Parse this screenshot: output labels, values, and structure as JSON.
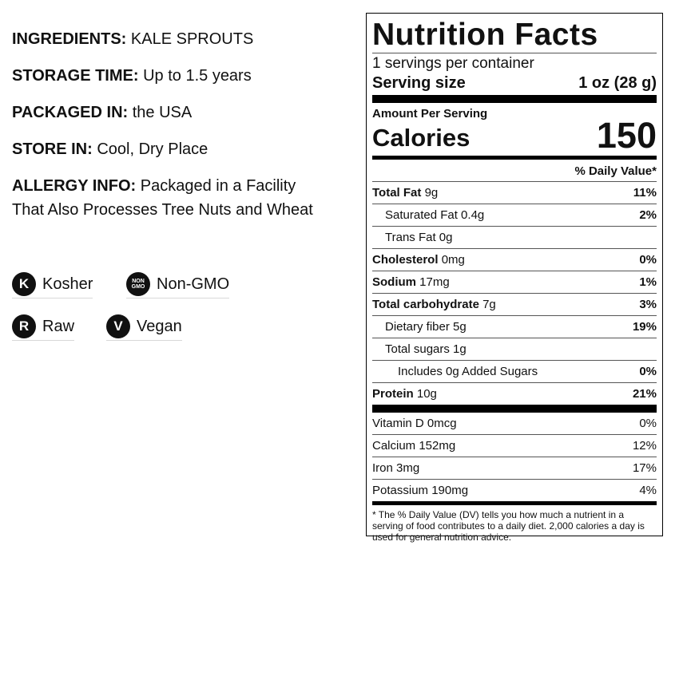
{
  "info": {
    "ingredients": {
      "label": "INGREDIENTS:",
      "value": "KALE SPROUTS"
    },
    "storage_time": {
      "label": "STORAGE TIME:",
      "value": "Up to 1.5 years"
    },
    "packaged_in": {
      "label": "PACKAGED IN:",
      "value": "the USA"
    },
    "store_in": {
      "label": "STORE IN:",
      "value": "Cool, Dry Place"
    },
    "allergy": {
      "label": "ALLERGY INFO:",
      "value": "Packaged in a Facility That Also Processes Tree Nuts and Wheat"
    }
  },
  "badges": [
    {
      "icon_text": "K",
      "label": "Kosher",
      "icon": "kosher-icon"
    },
    {
      "icon_text": "NON GMO",
      "label": "Non-GMO",
      "icon": "non-gmo-icon"
    },
    {
      "icon_text": "R",
      "label": "Raw",
      "icon": "raw-icon"
    },
    {
      "icon_text": "V",
      "label": "Vegan",
      "icon": "vegan-icon"
    }
  ],
  "nutrition": {
    "title": "Nutrition Facts",
    "servings_per_container": "1 servings per container",
    "serving_size_label": "Serving size",
    "serving_size_value": "1 oz (28 g)",
    "amount_per_serving": "Amount Per Serving",
    "calories_label": "Calories",
    "calories_value": "150",
    "daily_value_header": "% Daily Value*",
    "nutrients": [
      {
        "name": "Total Fat",
        "amount": "9g",
        "pct": "11%"
      },
      {
        "name": "Saturated Fat 0.4g",
        "amount": "",
        "pct": "2%"
      },
      {
        "name": "Trans Fat 0g",
        "amount": "",
        "pct": ""
      },
      {
        "name": "Cholesterol",
        "amount": "0mg",
        "pct": "0%"
      },
      {
        "name": "Sodium",
        "amount": "17mg",
        "pct": "1%"
      },
      {
        "name": "Total carbohydrate",
        "amount": "7g",
        "pct": "3%"
      },
      {
        "name": "Dietary fiber 5g",
        "amount": "",
        "pct": "19%"
      },
      {
        "name": "Total sugars 1g",
        "amount": "",
        "pct": ""
      },
      {
        "name": "Includes 0g Added Sugars",
        "amount": "",
        "pct": "0%"
      },
      {
        "name": "Protein",
        "amount": "10g",
        "pct": "21%"
      }
    ],
    "vitamins": [
      {
        "name": "Vitamin D 0mcg",
        "pct": "0%"
      },
      {
        "name": "Calcium 152mg",
        "pct": "12%"
      },
      {
        "name": "Iron 3mg",
        "pct": "17%"
      },
      {
        "name": "Potassium 190mg",
        "pct": "4%"
      }
    ],
    "footnote": "* The % Daily Value (DV) tells you how much a nutrient in a serving of food contributes to a daily diet. 2,000 calories a day is used for general nutrition advice."
  }
}
